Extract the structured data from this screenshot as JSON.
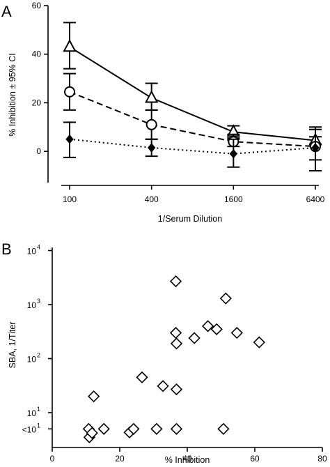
{
  "panels": {
    "a": {
      "letter": "A"
    },
    "b": {
      "letter": "B"
    }
  },
  "chart_data": [
    {
      "type": "line",
      "panel": "A",
      "xlabel": "1/Serum Dilution",
      "ylabel": "% Inhibition ± 95% CI",
      "categories": [
        "100",
        "400",
        "1600",
        "6400"
      ],
      "x_scale": "log",
      "ylim": [
        -10,
        60
      ],
      "yticks": [
        0,
        20,
        40,
        60
      ],
      "grid": false,
      "series": [
        {
          "marker": "triangle-open",
          "line": "solid",
          "color": "#000000",
          "values": [
            43,
            22,
            8,
            4.5
          ],
          "ci_low": [
            34,
            17,
            5.5,
            3
          ],
          "ci_high": [
            53,
            28,
            10.5,
            6
          ]
        },
        {
          "marker": "circle-open",
          "line": "dashed",
          "color": "#000000",
          "values": [
            24.5,
            11,
            4,
            2
          ],
          "ci_low": [
            17,
            5,
            2,
            -3.5
          ],
          "ci_high": [
            32,
            17,
            7,
            9
          ]
        },
        {
          "marker": "diamond-filled",
          "line": "dotted",
          "color": "#000000",
          "values": [
            5,
            1.5,
            -1,
            1.5
          ],
          "ci_low": [
            -2.5,
            -2,
            -6.5,
            -8
          ],
          "ci_high": [
            12,
            5,
            5,
            10
          ]
        }
      ]
    },
    {
      "type": "scatter",
      "panel": "B",
      "xlabel": "% Inhibition",
      "ylabel": "SBA, 1/Titer",
      "xlim": [
        0,
        80
      ],
      "xticks": [
        "0",
        "20",
        "40",
        "60",
        "80"
      ],
      "y_scale": "log",
      "yticks": [
        {
          "label": "10",
          "sup": "4",
          "value": 10000
        },
        {
          "label": "10",
          "sup": "3",
          "value": 1000
        },
        {
          "label": "10",
          "sup": "2",
          "value": 100
        },
        {
          "label": "10",
          "sup": "1",
          "value": 10
        },
        {
          "label": "<10",
          "sup": "1",
          "value": 5
        }
      ],
      "marker": "diamond-open",
      "points": [
        {
          "x": 10.8,
          "y": 5
        },
        {
          "x": 11,
          "y": 3.5
        },
        {
          "x": 11.8,
          "y": 4.2
        },
        {
          "x": 15.3,
          "y": 5
        },
        {
          "x": 12.3,
          "y": 20
        },
        {
          "x": 22.9,
          "y": 4.3
        },
        {
          "x": 24.1,
          "y": 5
        },
        {
          "x": 26.6,
          "y": 45
        },
        {
          "x": 30.9,
          "y": 5
        },
        {
          "x": 32.8,
          "y": 31
        },
        {
          "x": 36.6,
          "y": 2700
        },
        {
          "x": 36.6,
          "y": 300
        },
        {
          "x": 36.8,
          "y": 190
        },
        {
          "x": 36.8,
          "y": 27
        },
        {
          "x": 36.8,
          "y": 5
        },
        {
          "x": 42.1,
          "y": 240
        },
        {
          "x": 46.1,
          "y": 400
        },
        {
          "x": 48.7,
          "y": 350
        },
        {
          "x": 50.7,
          "y": 5
        },
        {
          "x": 51.4,
          "y": 1300
        },
        {
          "x": 54.7,
          "y": 300
        },
        {
          "x": 61.3,
          "y": 200
        }
      ]
    }
  ]
}
